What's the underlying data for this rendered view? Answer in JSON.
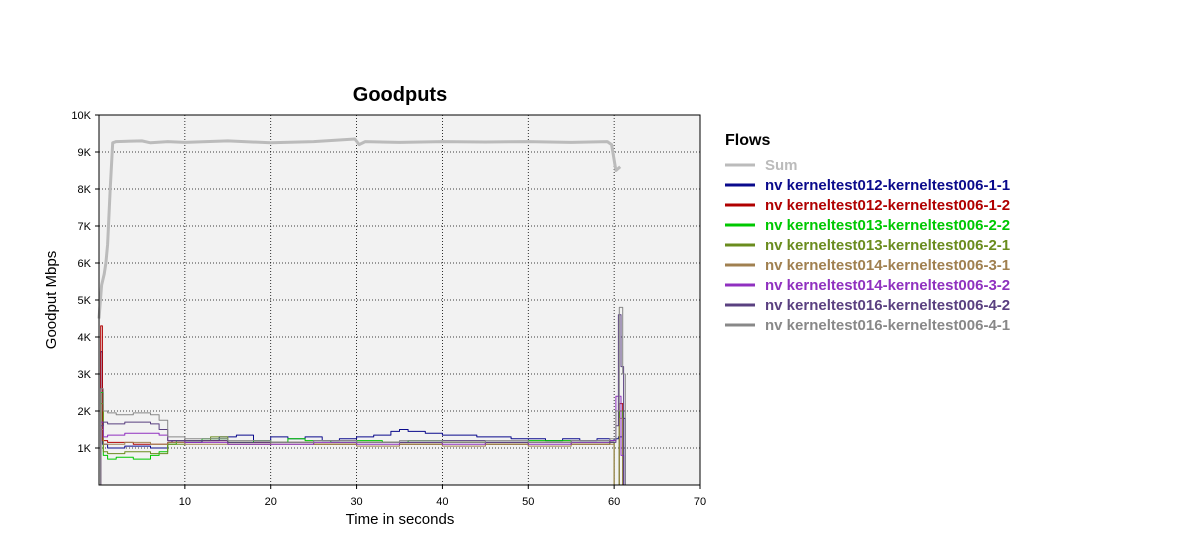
{
  "chart_data": {
    "type": "line",
    "title": "Goodputs",
    "xlabel": "Time in seconds",
    "ylabel": "Goodput Mbps",
    "xlim": [
      0,
      70
    ],
    "ylim": [
      0,
      10000
    ],
    "x_ticks": [
      {
        "value": 10,
        "label": "10"
      },
      {
        "value": 20,
        "label": "20"
      },
      {
        "value": 30,
        "label": "30"
      },
      {
        "value": 40,
        "label": "40"
      },
      {
        "value": 50,
        "label": "50"
      },
      {
        "value": 60,
        "label": "60"
      },
      {
        "value": 70,
        "label": "70"
      }
    ],
    "y_ticks": [
      {
        "value": 1000,
        "label": "1K"
      },
      {
        "value": 2000,
        "label": "2K"
      },
      {
        "value": 3000,
        "label": "3K"
      },
      {
        "value": 4000,
        "label": "4K"
      },
      {
        "value": 5000,
        "label": "5K"
      },
      {
        "value": 6000,
        "label": "6K"
      },
      {
        "value": 7000,
        "label": "7K"
      },
      {
        "value": 8000,
        "label": "8K"
      },
      {
        "value": 9000,
        "label": "9K"
      },
      {
        "value": 10000,
        "label": "10K"
      }
    ],
    "grid": true,
    "legend_title": "Flows",
    "legend_position": "right",
    "series": [
      {
        "name": "Sum",
        "color": "#bbbbbb",
        "x": [
          0,
          0.3,
          0.6,
          0.8,
          1.0,
          1.3,
          1.6,
          2,
          5,
          6,
          8,
          10,
          15,
          20,
          25,
          29.8,
          30.3,
          31,
          35,
          40,
          45,
          50,
          55,
          59.2,
          59.7,
          60.2,
          60.7
        ],
        "y": [
          4500,
          5400,
          5700,
          6000,
          6500,
          8000,
          9250,
          9280,
          9300,
          9250,
          9280,
          9260,
          9300,
          9250,
          9280,
          9350,
          9200,
          9280,
          9260,
          9280,
          9270,
          9280,
          9260,
          9280,
          9200,
          8500,
          8600
        ]
      },
      {
        "name": "nv kerneltest012-kerneltest006-1-1",
        "color": "#0a0a8c",
        "x": [
          0,
          0.2,
          0.4,
          1,
          3,
          6,
          8,
          8.5,
          10,
          12,
          14,
          16,
          18,
          20,
          22,
          24,
          26,
          28,
          30,
          32,
          34,
          35,
          36,
          38,
          40,
          42,
          44,
          46,
          48,
          50,
          52,
          54,
          56,
          58,
          59.5,
          60,
          60.5,
          61,
          61.3
        ],
        "y": [
          0,
          3600,
          1100,
          1000,
          1050,
          1000,
          1150,
          1200,
          1150,
          1200,
          1300,
          1350,
          1200,
          1300,
          1250,
          1300,
          1200,
          1250,
          1300,
          1350,
          1450,
          1500,
          1450,
          1400,
          1350,
          1350,
          1300,
          1300,
          1250,
          1250,
          1200,
          1250,
          1200,
          1250,
          1200,
          1250,
          1300,
          1800,
          0
        ]
      },
      {
        "name": "nv kerneltest012-kerneltest006-1-2",
        "color": "#b00000",
        "x": [
          0,
          0.2,
          0.4,
          1,
          4,
          8,
          10,
          15,
          20,
          25,
          30,
          35,
          40,
          45,
          50,
          55,
          59.5,
          60,
          60.6,
          61
        ],
        "y": [
          0,
          4300,
          1200,
          1150,
          1100,
          1150,
          1200,
          1150,
          1150,
          1100,
          1150,
          1100,
          1150,
          1100,
          1150,
          1100,
          1150,
          0,
          2200,
          0
        ]
      },
      {
        "name": "nv kerneltest013-kerneltest006-2-2",
        "color": "#00c800",
        "x": [
          0,
          0.2,
          0.5,
          1,
          2,
          4,
          6,
          7,
          8,
          9,
          12,
          15,
          18,
          20,
          22,
          24,
          27,
          30,
          33,
          36,
          40,
          45,
          50,
          55,
          59.5,
          60,
          60.6,
          61
        ],
        "y": [
          0,
          2500,
          800,
          700,
          750,
          700,
          800,
          900,
          1100,
          1200,
          1250,
          1150,
          1200,
          1150,
          1250,
          1200,
          1150,
          1200,
          1150,
          1200,
          1150,
          1150,
          1200,
          1150,
          1150,
          0,
          2000,
          0
        ]
      },
      {
        "name": "nv kerneltest013-kerneltest006-2-1",
        "color": "#6a8c1e",
        "x": [
          0,
          0.2,
          0.5,
          1,
          3,
          6,
          8,
          10,
          13,
          15,
          20,
          25,
          30,
          35,
          40,
          45,
          50,
          55,
          59.5,
          60,
          60.6,
          61
        ],
        "y": [
          0,
          2200,
          900,
          850,
          900,
          850,
          1100,
          1200,
          1300,
          1100,
          1150,
          1100,
          1150,
          1100,
          1150,
          1100,
          1150,
          1100,
          1150,
          0,
          2000,
          0
        ]
      },
      {
        "name": "nv kerneltest014-kerneltest006-3-1",
        "color": "#a08050",
        "x": [
          0,
          0.2,
          0.5,
          1,
          3,
          6,
          8,
          10,
          15,
          20,
          25,
          30,
          35,
          40,
          45,
          50,
          55,
          59.5,
          60,
          60.6,
          61
        ],
        "y": [
          0,
          1500,
          1100,
          1100,
          1150,
          1100,
          1150,
          1100,
          1100,
          1100,
          1100,
          1050,
          1100,
          1050,
          1100,
          1050,
          1100,
          1100,
          0,
          1800,
          0
        ]
      },
      {
        "name": "nv kerneltest014-kerneltest006-3-2",
        "color": "#9030c0",
        "x": [
          0,
          0.2,
          0.5,
          1,
          3,
          5,
          7,
          8,
          10,
          15,
          20,
          25,
          30,
          35,
          40,
          45,
          50,
          55,
          59.5,
          60.2,
          60.8,
          61.1
        ],
        "y": [
          0,
          1700,
          1300,
          1350,
          1400,
          1400,
          1350,
          1200,
          1150,
          1100,
          1100,
          1150,
          1100,
          1150,
          1100,
          1150,
          1100,
          1150,
          1200,
          2400,
          800,
          0
        ]
      },
      {
        "name": "nv kerneltest016-kerneltest006-4-2",
        "color": "#5a4080",
        "x": [
          0,
          0.2,
          0.5,
          1,
          3,
          6,
          7,
          8,
          10,
          15,
          20,
          25,
          30,
          35,
          40,
          45,
          50,
          55,
          59.5,
          60.2,
          60.5,
          60.8,
          61.1
        ],
        "y": [
          0,
          1600,
          1700,
          1650,
          1700,
          1650,
          1500,
          1200,
          1200,
          1150,
          1150,
          1200,
          1150,
          1150,
          1200,
          1150,
          1150,
          1200,
          1150,
          1600,
          4600,
          3200,
          0
        ]
      },
      {
        "name": "nv kerneltest016-kerneltest006-4-1",
        "color": "#888888",
        "x": [
          0,
          0.2,
          0.5,
          1,
          2,
          4,
          6,
          7,
          8,
          10,
          15,
          20,
          25,
          30,
          35,
          40,
          45,
          50,
          55,
          59.5,
          60.2,
          60.6,
          61,
          61.3
        ],
        "y": [
          0,
          2600,
          2000,
          1950,
          1900,
          1950,
          1900,
          1750,
          1300,
          1250,
          1200,
          1150,
          1200,
          1150,
          1200,
          1150,
          1200,
          1150,
          1200,
          1250,
          2000,
          4800,
          3000,
          0
        ]
      }
    ]
  }
}
